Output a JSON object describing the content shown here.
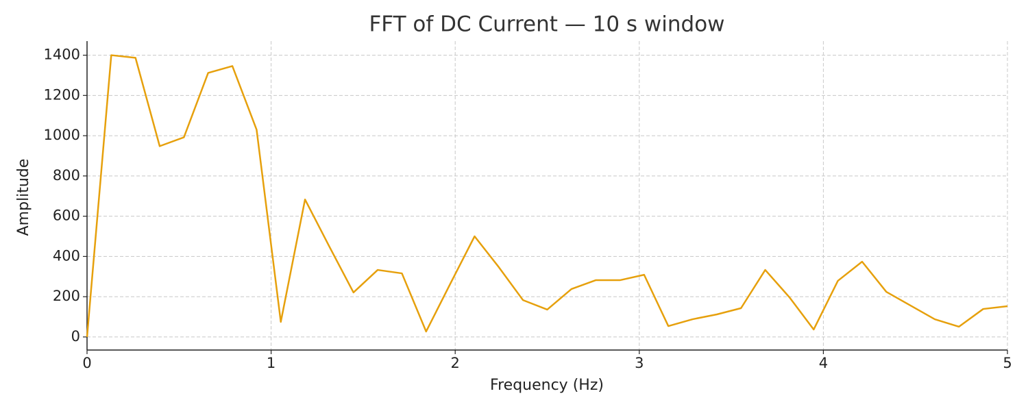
{
  "chart_data": {
    "type": "line",
    "title": "FFT of DC Current — 10 s window",
    "xlabel": "Frequency (Hz)",
    "ylabel": "Amplitude",
    "x": [
      0,
      0.1316,
      0.2632,
      0.3947,
      0.5263,
      0.6579,
      0.7895,
      0.9211,
      1.0526,
      1.1842,
      1.3158,
      1.4474,
      1.5789,
      1.7105,
      1.8421,
      1.9737,
      2.1053,
      2.2368,
      2.3684,
      2.5,
      2.6316,
      2.7632,
      2.8947,
      3.0263,
      3.1579,
      3.2895,
      3.4211,
      3.5526,
      3.6842,
      3.8158,
      3.9474,
      4.0789,
      4.2105,
      4.3421,
      4.4737,
      4.6053,
      4.7368,
      4.8684,
      5
    ],
    "values": [
      0,
      1400,
      1387,
      948,
      992,
      1312,
      1346,
      1030,
      75,
      683,
      450,
      221,
      333,
      316,
      27,
      265,
      500,
      347,
      183,
      136,
      238,
      282,
      282,
      309,
      54,
      88,
      112,
      143,
      333,
      197,
      37,
      279,
      374,
      224,
      156,
      88,
      51,
      139,
      153
    ],
    "color": "#e6a00c",
    "xlim": [
      0,
      5
    ],
    "xticks": [
      0,
      1,
      2,
      3,
      4,
      5
    ],
    "ylim": [
      -65,
      1470
    ],
    "yticks": [
      0,
      200,
      400,
      600,
      800,
      1000,
      1200,
      1400
    ],
    "grid": true
  }
}
